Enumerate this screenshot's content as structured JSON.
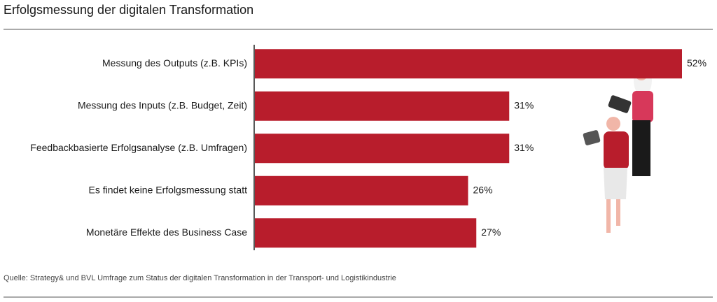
{
  "chart_data": {
    "type": "bar",
    "orientation": "horizontal",
    "title": "Erfolgsmessung der digitalen Transformation",
    "categories": [
      "Messung des Outputs (z.B. KPIs)",
      "Messung des Inputs (z.B. Budget, Zeit)",
      "Feedbackbasierte Erfolgsanalyse (z.B. Umfragen)",
      "Es findet keine Erfolgsmessung statt",
      "Monetäre Effekte des Business Case"
    ],
    "values": [
      52,
      31,
      31,
      26,
      27
    ],
    "value_labels": [
      "52%",
      "31%",
      "31%",
      "26%",
      "27%"
    ],
    "color": "#b81d2c",
    "source": "Quelle: Strategy& und BVL Umfrage zum Status der digitalen Transformation in der Transport- und Logistikindustrie"
  }
}
